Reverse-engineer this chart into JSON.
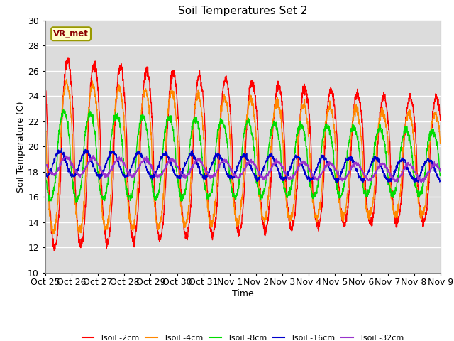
{
  "title": "Soil Temperatures Set 2",
  "xlabel": "Time",
  "ylabel": "Soil Temperature (C)",
  "ylim": [
    10,
    30
  ],
  "background_color": "#dcdcdc",
  "annotation_text": "VR_met",
  "series_colors": [
    "#ff0000",
    "#ff8800",
    "#00dd00",
    "#0000cc",
    "#9933cc"
  ],
  "series_labels": [
    "Tsoil -2cm",
    "Tsoil -4cm",
    "Tsoil -8cm",
    "Tsoil -16cm",
    "Tsoil -32cm"
  ],
  "x_tick_labels": [
    "Oct 25",
    "Oct 26",
    "Oct 27",
    "Oct 28",
    "Oct 29",
    "Oct 30",
    "Oct 31",
    "Nov 1",
    "Nov 2",
    "Nov 3",
    "Nov 4",
    "Nov 5",
    "Nov 6",
    "Nov 7",
    "Nov 8",
    "Nov 9"
  ],
  "n_days": 15,
  "pts_per_day": 144
}
